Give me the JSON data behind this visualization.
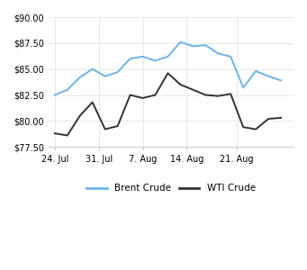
{
  "brent_x": [
    0,
    1,
    2,
    3,
    4,
    5,
    6,
    7,
    8,
    9,
    10,
    11,
    12,
    13,
    14,
    15,
    16,
    17,
    18
  ],
  "brent_y": [
    82.5,
    83.0,
    84.2,
    85.0,
    84.3,
    84.7,
    86.0,
    86.2,
    85.8,
    86.2,
    87.6,
    87.2,
    87.3,
    86.5,
    86.2,
    83.2,
    84.8,
    84.3,
    83.9
  ],
  "wti_x": [
    0,
    1,
    2,
    3,
    4,
    5,
    6,
    7,
    8,
    9,
    10,
    11,
    12,
    13,
    14,
    15,
    16,
    17,
    18
  ],
  "wti_y": [
    78.8,
    78.6,
    80.5,
    81.8,
    79.2,
    79.5,
    82.5,
    82.2,
    82.5,
    84.6,
    83.5,
    83.0,
    82.5,
    82.4,
    82.6,
    79.4,
    79.2,
    80.2,
    80.3
  ],
  "xtick_positions": [
    0,
    3.5,
    7,
    10.5,
    14.5,
    18
  ],
  "xtick_labels": [
    "24. Jul",
    "31. Jul",
    "7. Aug",
    "14. Aug",
    "21. Aug",
    ""
  ],
  "ylim": [
    77.5,
    90.0
  ],
  "ytick_values": [
    77.5,
    80.0,
    82.5,
    85.0,
    87.5,
    90.0
  ],
  "brent_color": "#6ab4e8",
  "wti_color": "#333333",
  "bg_color": "#ffffff",
  "grid_color": "#e8e8e8",
  "legend_brent": "Brent Crude",
  "legend_wti": "WTI Crude",
  "figsize": [
    3.41,
    3.0
  ],
  "dpi": 100
}
